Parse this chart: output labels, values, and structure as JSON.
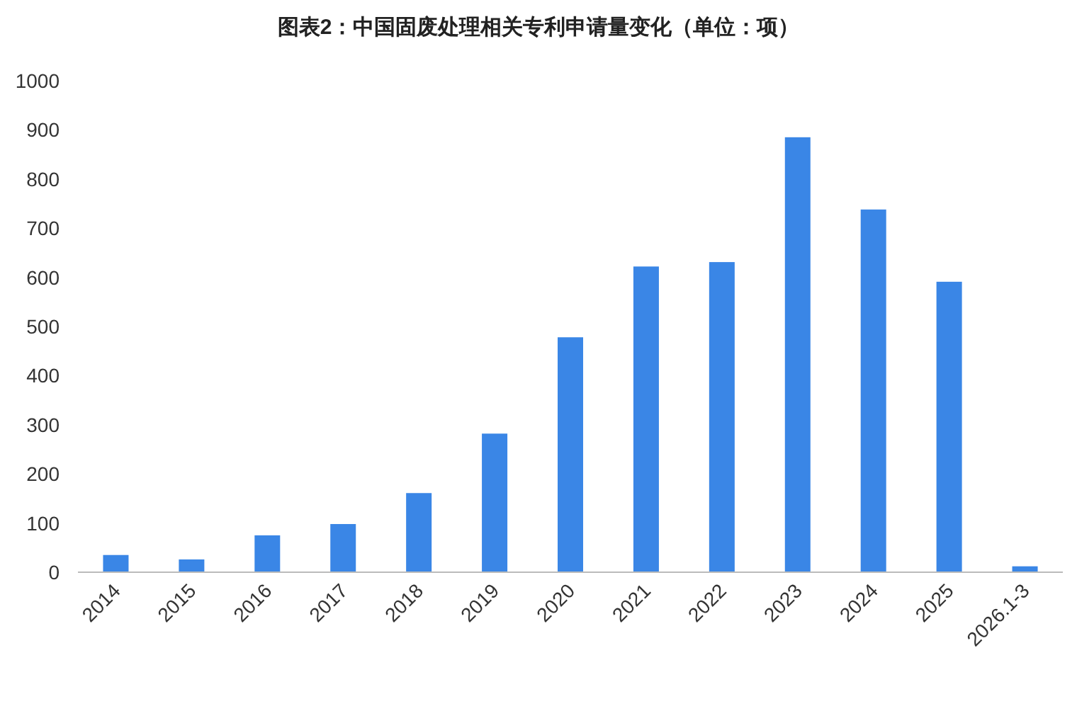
{
  "chart_data": {
    "type": "bar",
    "title": "图表2：中国固废处理相关专利申请量变化（单位：项）",
    "categories": [
      "2014",
      "2015",
      "2016",
      "2017",
      "2018",
      "2019",
      "2020",
      "2021",
      "2022",
      "2023",
      "2024",
      "2025",
      "2026.1-3"
    ],
    "values": [
      35,
      26,
      75,
      98,
      161,
      282,
      478,
      622,
      631,
      885,
      738,
      591,
      12
    ],
    "color": "#3a86e6",
    "ylim": [
      0,
      1000
    ],
    "yticks": [
      0,
      100,
      200,
      300,
      400,
      500,
      600,
      700,
      800,
      900,
      1000
    ],
    "grid": false
  }
}
